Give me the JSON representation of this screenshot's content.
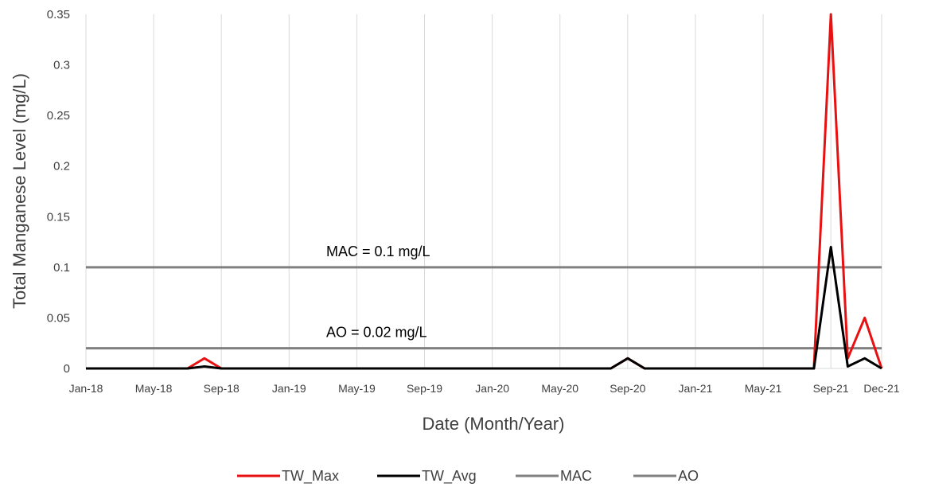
{
  "chart_data": {
    "type": "line",
    "title": "",
    "xlabel": "Date (Month/Year)",
    "ylabel": "Total Manganese Level (mg/L)",
    "x_range": [
      "2018-01",
      "2021-12"
    ],
    "ylim": [
      0,
      0.35
    ],
    "y_ticks": [
      {
        "value": 0,
        "label": "0"
      },
      {
        "value": 0.05,
        "label": "0.05"
      },
      {
        "value": 0.1,
        "label": "0.1"
      },
      {
        "value": 0.15,
        "label": "0.15"
      },
      {
        "value": 0.2,
        "label": "0.2"
      },
      {
        "value": 0.25,
        "label": "0.25"
      },
      {
        "value": 0.3,
        "label": "0.3"
      },
      {
        "value": 0.35,
        "label": "0.35"
      }
    ],
    "x_ticks": [
      {
        "date": "2018-01",
        "label": "Jan-18"
      },
      {
        "date": "2018-05",
        "label": "May-18"
      },
      {
        "date": "2018-09",
        "label": "Sep-18"
      },
      {
        "date": "2019-01",
        "label": "Jan-19"
      },
      {
        "date": "2019-05",
        "label": "May-19"
      },
      {
        "date": "2019-09",
        "label": "Sep-19"
      },
      {
        "date": "2020-01",
        "label": "Jan-20"
      },
      {
        "date": "2020-05",
        "label": "May-20"
      },
      {
        "date": "2020-09",
        "label": "Sep-20"
      },
      {
        "date": "2021-01",
        "label": "Jan-21"
      },
      {
        "date": "2021-05",
        "label": "May-21"
      },
      {
        "date": "2021-09",
        "label": "Sep-21"
      },
      {
        "date": "2021-12",
        "label": "Dec-21"
      }
    ],
    "grid": {
      "vertical": true,
      "horizontal": false
    },
    "legend_position": "bottom",
    "series": [
      {
        "name": "TW_Max",
        "color": "#e81010",
        "points": [
          [
            "2018-01",
            0
          ],
          [
            "2018-07",
            0
          ],
          [
            "2018-08",
            0.01
          ],
          [
            "2018-09",
            0
          ],
          [
            "2020-08",
            0
          ],
          [
            "2020-09",
            0.01
          ],
          [
            "2020-10",
            0
          ],
          [
            "2021-08",
            0
          ],
          [
            "2021-09",
            0.35
          ],
          [
            "2021-10",
            0.01
          ],
          [
            "2021-11",
            0.05
          ],
          [
            "2021-12",
            0
          ]
        ]
      },
      {
        "name": "TW_Avg",
        "color": "#000000",
        "points": [
          [
            "2018-01",
            0
          ],
          [
            "2018-07",
            0
          ],
          [
            "2018-08",
            0.002
          ],
          [
            "2018-09",
            0
          ],
          [
            "2020-08",
            0
          ],
          [
            "2020-09",
            0.01
          ],
          [
            "2020-10",
            0
          ],
          [
            "2021-08",
            0
          ],
          [
            "2021-09",
            0.12
          ],
          [
            "2021-10",
            0.002
          ],
          [
            "2021-11",
            0.01
          ],
          [
            "2021-12",
            0
          ]
        ]
      },
      {
        "name": "MAC",
        "color": "#808080",
        "points": [
          [
            "2018-01",
            0.1
          ],
          [
            "2021-12",
            0.1
          ]
        ]
      },
      {
        "name": "AO",
        "color": "#808080",
        "points": [
          [
            "2018-01",
            0.02
          ],
          [
            "2021-12",
            0.02
          ]
        ]
      }
    ],
    "annotations": [
      {
        "text": "MAC = 0.1 mg/L",
        "value": 0.1
      },
      {
        "text": "AO = 0.02 mg/L",
        "value": 0.02
      }
    ]
  }
}
